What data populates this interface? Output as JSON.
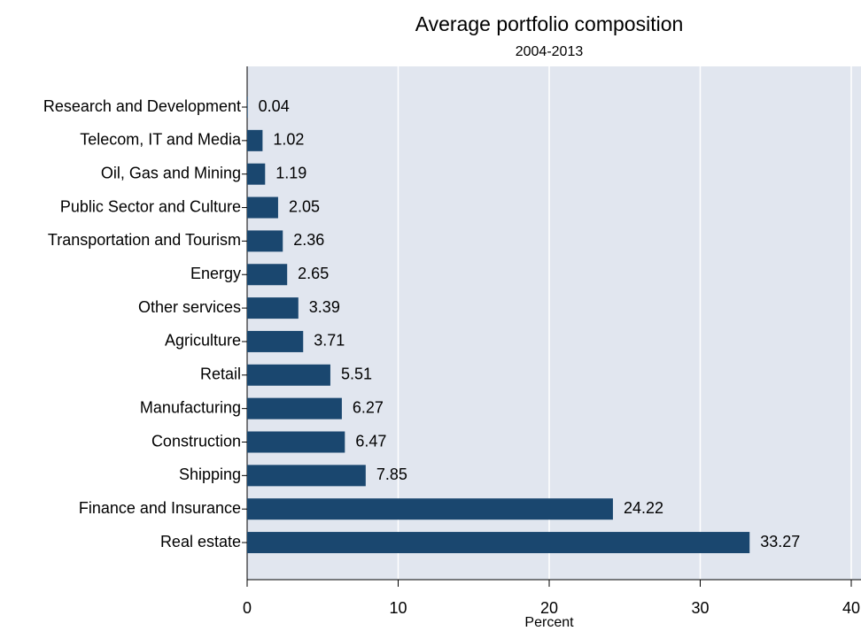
{
  "chart_data": {
    "type": "bar",
    "orientation": "horizontal",
    "title": "Average portfolio composition",
    "subtitle": "2004-2013",
    "x_label": "Percent",
    "categories": [
      "Research and Development",
      "Telecom, IT and Media",
      "Oil, Gas and Mining",
      "Public Sector and Culture",
      "Transportation and Tourism",
      "Energy",
      "Other services",
      "Agriculture",
      "Retail",
      "Manufacturing",
      "Construction",
      "Shipping",
      "Finance and Insurance",
      "Real estate"
    ],
    "values": [
      0.04,
      1.02,
      1.19,
      2.05,
      2.36,
      2.65,
      3.39,
      3.71,
      5.51,
      6.27,
      6.47,
      7.85,
      24.22,
      33.27
    ],
    "color": "#1a476f",
    "xlim": [
      0,
      40
    ],
    "xticks": [
      0,
      10,
      20,
      30,
      40
    ],
    "grid": true
  }
}
